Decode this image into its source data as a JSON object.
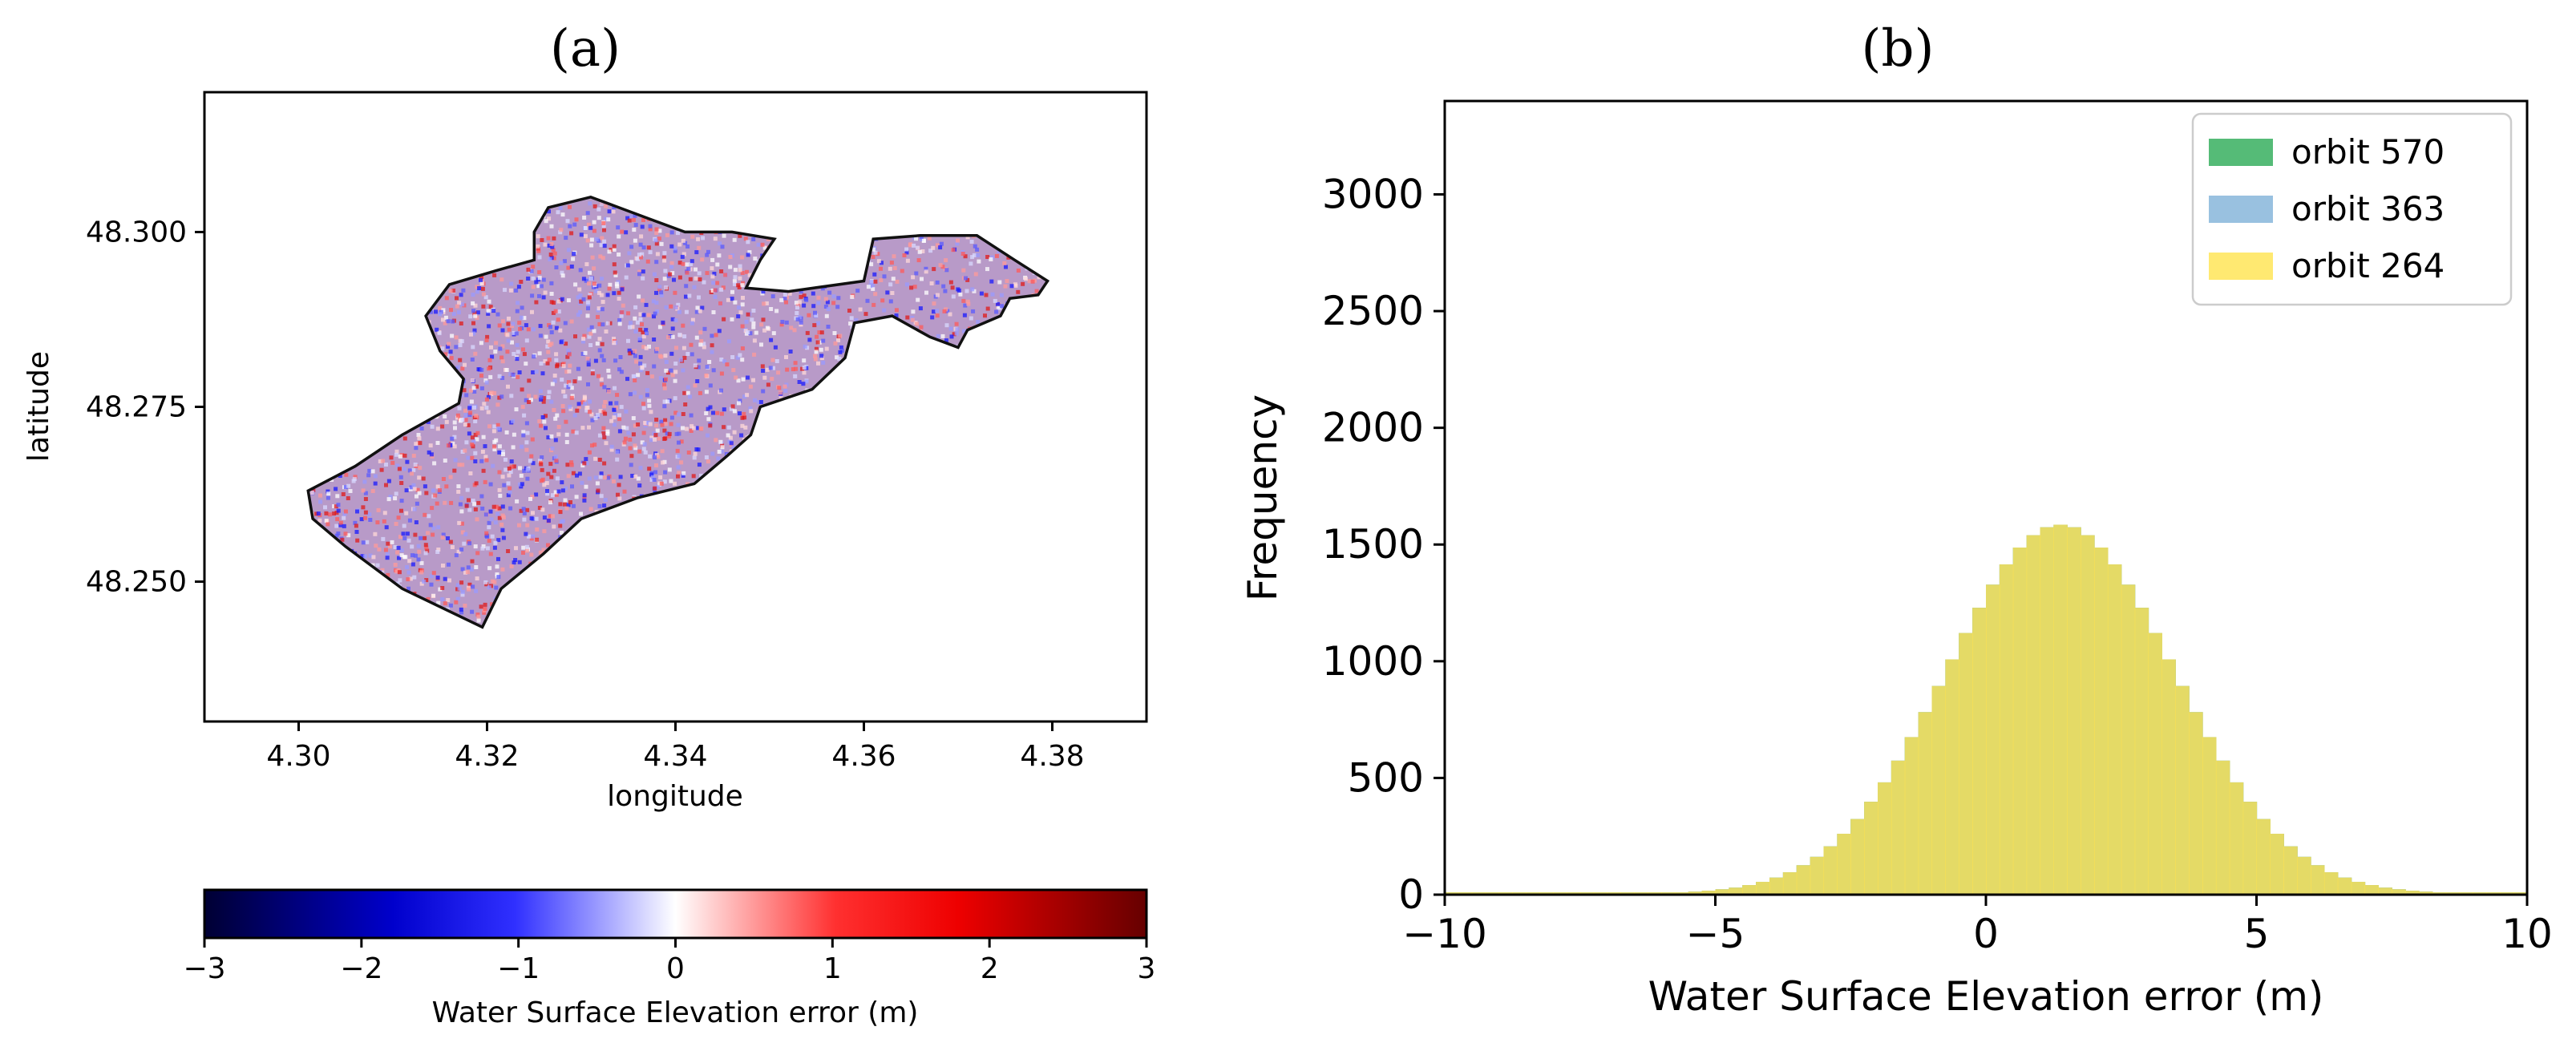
{
  "panels": {
    "a": {
      "label": "(a)"
    },
    "b": {
      "label": "(b)"
    }
  },
  "chart_data": [
    {
      "type": "scatter",
      "panel": "(a)",
      "title": "",
      "xlabel": "longitude",
      "ylabel": "latitude",
      "xlim": [
        4.29,
        4.39
      ],
      "ylim": [
        48.23,
        48.32
      ],
      "xticks": [
        4.3,
        4.32,
        4.34,
        4.36,
        4.38
      ],
      "xtick_labels": [
        "4.30",
        "4.32",
        "4.34",
        "4.36",
        "4.38"
      ],
      "yticks": [
        48.25,
        48.275,
        48.3
      ],
      "ytick_labels": [
        "48.250",
        "48.275",
        "48.300"
      ],
      "lake_outline": [
        [
          4.3195,
          48.2435
        ],
        [
          4.311,
          48.249
        ],
        [
          4.305,
          48.255
        ],
        [
          4.3015,
          48.259
        ],
        [
          4.301,
          48.263
        ],
        [
          4.306,
          48.2665
        ],
        [
          4.311,
          48.271
        ],
        [
          4.317,
          48.2755
        ],
        [
          4.3175,
          48.279
        ],
        [
          4.315,
          48.283
        ],
        [
          4.3135,
          48.288
        ],
        [
          4.316,
          48.2925
        ],
        [
          4.321,
          48.2945
        ],
        [
          4.325,
          48.296
        ],
        [
          4.325,
          48.3
        ],
        [
          4.3265,
          48.3035
        ],
        [
          4.331,
          48.305
        ],
        [
          4.337,
          48.302
        ],
        [
          4.341,
          48.3
        ],
        [
          4.346,
          48.3
        ],
        [
          4.3505,
          48.299
        ],
        [
          4.349,
          48.296
        ],
        [
          4.3475,
          48.292
        ],
        [
          4.352,
          48.2915
        ],
        [
          4.36,
          48.293
        ],
        [
          4.361,
          48.299
        ],
        [
          4.366,
          48.2995
        ],
        [
          4.372,
          48.2995
        ],
        [
          4.376,
          48.296
        ],
        [
          4.3795,
          48.293
        ],
        [
          4.3785,
          48.291
        ],
        [
          4.3755,
          48.2905
        ],
        [
          4.3745,
          48.288
        ],
        [
          4.371,
          48.286
        ],
        [
          4.37,
          48.2835
        ],
        [
          4.367,
          48.285
        ],
        [
          4.363,
          48.288
        ],
        [
          4.359,
          48.287
        ],
        [
          4.358,
          48.282
        ],
        [
          4.3545,
          48.2775
        ],
        [
          4.349,
          48.275
        ],
        [
          4.348,
          48.271
        ],
        [
          4.3455,
          48.268
        ],
        [
          4.342,
          48.264
        ],
        [
          4.336,
          48.262
        ],
        [
          4.33,
          48.259
        ],
        [
          4.326,
          48.254
        ],
        [
          4.3215,
          48.249
        ]
      ],
      "error_range_m": [
        -3,
        3
      ],
      "colorbar": {
        "label": "Water Surface Elevation error (m)",
        "ticks": [
          -3,
          -2,
          -1,
          0,
          1,
          2,
          3
        ],
        "tick_labels": [
          "−3",
          "−2",
          "−1",
          "0",
          "1",
          "2",
          "3"
        ],
        "colors": [
          "#000033",
          "#0000ff",
          "#ffffff",
          "#ff0000",
          "#660000"
        ]
      }
    },
    {
      "type": "histogram",
      "panel": "(b)",
      "title": "",
      "xlabel": "Water Surface Elevation error (m)",
      "ylabel": "Frequency",
      "xlim": [
        -10,
        10
      ],
      "ylim": [
        0,
        3400
      ],
      "xticks": [
        -10,
        -5,
        0,
        5,
        10
      ],
      "xtick_labels": [
        "−10",
        "−5",
        "0",
        "5",
        "10"
      ],
      "yticks": [
        0,
        500,
        1000,
        1500,
        2000,
        2500,
        3000
      ],
      "ytick_labels": [
        "0",
        "500",
        "1000",
        "1500",
        "2000",
        "2500",
        "3000"
      ],
      "legend_position": "top-right",
      "bin_edges": [
        -10,
        10
      ],
      "bin_count": 80,
      "series": [
        {
          "name": "orbit 570",
          "color": "#2aaa55",
          "alpha": 0.8,
          "values": [
            10,
            10,
            10,
            10,
            10,
            10,
            10,
            10,
            10,
            10,
            10,
            10,
            10,
            10,
            10,
            10,
            10,
            10,
            13,
            17,
            23,
            30,
            41,
            55,
            73,
            96,
            126,
            162,
            207,
            261,
            324,
            398,
            481,
            574,
            675,
            782,
            894,
            1008,
            1121,
            1229,
            1328,
            1415,
            1487,
            1540,
            1574,
            1585,
            1574,
            1540,
            1487,
            1415,
            1328,
            1229,
            1121,
            1008,
            894,
            782,
            675,
            574,
            481,
            398,
            324,
            261,
            207,
            162,
            126,
            96,
            73,
            55,
            41,
            30,
            23,
            17,
            13,
            10,
            10,
            10,
            10,
            10,
            10,
            10
          ]
        },
        {
          "name": "orbit 363",
          "color": "#7fb2d8",
          "alpha": 0.8,
          "values": [
            10,
            10,
            10,
            10,
            10,
            10,
            10,
            10,
            10,
            10,
            10,
            10,
            10,
            10,
            10,
            10,
            10,
            10,
            13,
            17,
            23,
            30,
            41,
            55,
            73,
            96,
            126,
            162,
            207,
            261,
            324,
            398,
            481,
            574,
            675,
            782,
            894,
            1008,
            1121,
            1229,
            1328,
            1415,
            1487,
            1540,
            1574,
            1585,
            1574,
            1540,
            1487,
            1415,
            1328,
            1229,
            1121,
            1008,
            894,
            782,
            675,
            574,
            481,
            398,
            324,
            261,
            207,
            162,
            126,
            96,
            73,
            55,
            41,
            30,
            23,
            17,
            13,
            10,
            10,
            10,
            10,
            10,
            10,
            10
          ]
        },
        {
          "name": "orbit 264",
          "color": "#ffe44d",
          "alpha": 0.8,
          "values": [
            10,
            10,
            10,
            10,
            10,
            10,
            10,
            10,
            10,
            10,
            10,
            10,
            10,
            10,
            10,
            10,
            10,
            10,
            13,
            17,
            23,
            30,
            41,
            55,
            73,
            96,
            126,
            162,
            207,
            261,
            324,
            398,
            481,
            574,
            675,
            782,
            894,
            1008,
            1121,
            1229,
            1328,
            1415,
            1487,
            1540,
            1574,
            1585,
            1574,
            1540,
            1487,
            1415,
            1328,
            1229,
            1121,
            1008,
            894,
            782,
            675,
            574,
            481,
            398,
            324,
            261,
            207,
            162,
            126,
            96,
            73,
            55,
            41,
            30,
            23,
            17,
            13,
            10,
            10,
            10,
            10,
            10,
            10,
            10
          ]
        }
      ]
    }
  ]
}
